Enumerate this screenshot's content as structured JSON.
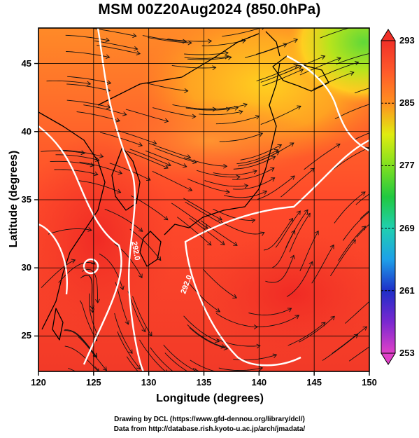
{
  "title": "MSM 00Z20Aug2024 (850.0hPa)",
  "axes": {
    "xlabel": "Longitude (degrees)",
    "ylabel": "Latitude  (degrees)",
    "x_ticks": [
      "120",
      "125",
      "130",
      "135",
      "140",
      "145",
      "150"
    ],
    "y_ticks": [
      "25",
      "30",
      "35",
      "40",
      "45"
    ],
    "x_range": [
      120,
      150
    ],
    "y_range": [
      22.4,
      47.6
    ]
  },
  "colorbar": {
    "labels": [
      "293",
      "285",
      "277",
      "269",
      "261",
      "253"
    ],
    "range": [
      253,
      293
    ],
    "colors": [
      "#e040c8",
      "#7a28d0",
      "#1e2ec8",
      "#1ea0e8",
      "#20d0b0",
      "#20c840",
      "#80e020",
      "#e0ec10",
      "#ff9020",
      "#ff5a2a",
      "#f03028"
    ]
  },
  "contour_labels": [
    "292.0",
    "292.0"
  ],
  "footer": {
    "line1": "Drawing by DCL (https://www.gfd-dennou.org/library/dcl/)",
    "line2": "Data from http://database.rish.kyoto-u.ac.jp/arch/jmadata/"
  }
}
